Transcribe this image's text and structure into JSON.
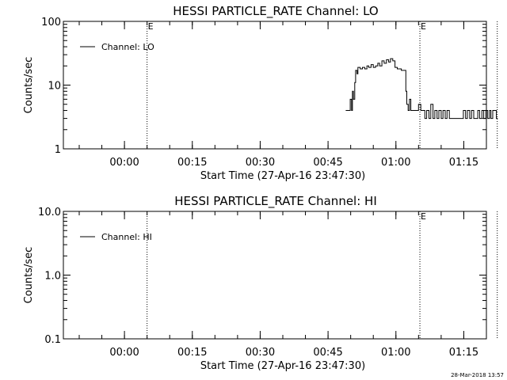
{
  "footer": {
    "timestamp": "28-Mar-2018 13:57"
  },
  "chart_data": [
    {
      "type": "line",
      "title": "HESSI PARTICLE_RATE Channel: LO",
      "xlabel": "Start Time (27-Apr-16 23:47:30)",
      "ylabel": "Counts/sec",
      "yscale": "log",
      "ylim": [
        1,
        100
      ],
      "y_ticks": [
        "1",
        "10",
        "100"
      ],
      "xlim_minutes": [
        -13.5,
        80.0
      ],
      "x_ticks": [
        "00:00",
        "00:15",
        "00:30",
        "00:45",
        "01:00",
        "01:15"
      ],
      "x_tick_minutes": [
        0,
        15,
        30,
        45,
        60,
        75
      ],
      "marker_lines": [
        {
          "minute": 5.0,
          "label": "E"
        },
        {
          "minute": 65.3,
          "label": "E"
        },
        {
          "minute": 82.4,
          "label": ""
        }
      ],
      "legend": {
        "entry": "Channel: LO",
        "position": "top-left"
      },
      "series": [
        {
          "name": "Channel: LO",
          "x_minutes": [
            48.9,
            49.7,
            49.9,
            50.2,
            50.4,
            50.6,
            50.9,
            51.1,
            51.4,
            51.6,
            52.1,
            52.6,
            53.1,
            53.6,
            54.0,
            54.5,
            55.0,
            55.5,
            56.0,
            56.4,
            56.9,
            57.4,
            57.9,
            58.4,
            58.8,
            59.3,
            59.8,
            60.3,
            60.8,
            61.2,
            61.6,
            62.0,
            62.2,
            62.4,
            62.7,
            63.0,
            63.3,
            63.7,
            64.1,
            64.5,
            65.0,
            65.5,
            65.9,
            66.4,
            66.8,
            67.3,
            67.7,
            68.2,
            68.6,
            69.1,
            69.5,
            70.0,
            70.4,
            70.9,
            71.3,
            71.8,
            72.2,
            72.7,
            73.1,
            73.6,
            74.0,
            74.5,
            74.9,
            75.4,
            75.8,
            76.3,
            76.7,
            77.2,
            77.6,
            78.1,
            78.5,
            79.0,
            79.4,
            79.9,
            80.3,
            80.7,
            81.0,
            81.4,
            81.8,
            82.2,
            82.5
          ],
          "values": [
            4,
            4,
            6,
            4,
            8,
            6,
            11,
            17,
            15,
            19,
            18,
            19,
            18,
            20,
            19,
            21,
            19,
            20,
            22,
            20,
            24,
            22,
            25,
            23,
            26,
            24,
            19,
            18,
            18,
            17,
            17,
            17,
            8,
            5,
            4,
            6,
            4,
            4,
            4,
            4,
            5,
            4,
            4,
            3,
            4,
            3,
            5,
            3,
            4,
            3,
            4,
            3,
            4,
            3,
            4,
            3,
            3,
            3,
            3,
            3,
            3,
            3,
            4,
            3,
            4,
            3,
            4,
            3,
            3,
            4,
            3,
            4,
            3,
            4,
            3,
            4,
            3,
            4,
            4,
            3,
            3
          ]
        }
      ]
    },
    {
      "type": "line",
      "title": "HESSI PARTICLE_RATE Channel: HI",
      "xlabel": "Start Time (27-Apr-16 23:47:30)",
      "ylabel": "Counts/sec",
      "yscale": "log",
      "ylim": [
        0.1,
        10
      ],
      "y_ticks": [
        "0.1",
        "1.0",
        "10.0"
      ],
      "xlim_minutes": [
        -13.5,
        80.0
      ],
      "x_ticks": [
        "00:00",
        "00:15",
        "00:30",
        "00:45",
        "01:00",
        "01:15"
      ],
      "x_tick_minutes": [
        0,
        15,
        30,
        45,
        60,
        75
      ],
      "marker_lines": [
        {
          "minute": 5.0,
          "label": ""
        },
        {
          "minute": 65.3,
          "label": "E"
        },
        {
          "minute": 82.4,
          "label": ""
        }
      ],
      "legend": {
        "entry": "Channel: HI",
        "position": "top-left"
      },
      "series": [
        {
          "name": "Channel: HI",
          "x_minutes": [],
          "values": []
        }
      ]
    }
  ]
}
